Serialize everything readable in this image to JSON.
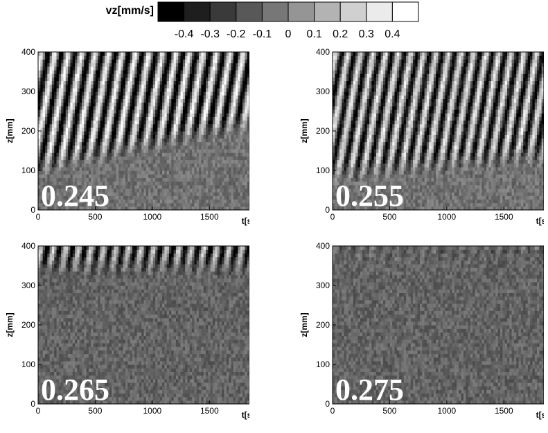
{
  "colorbar": {
    "title": "vz[mm/s]",
    "levels": [
      "-0.4",
      "-0.3",
      "-0.2",
      "-0.1",
      "0",
      "0.1",
      "0.2",
      "0.3",
      "0.4"
    ],
    "colors": [
      "#000000",
      "#1e1e1e",
      "#3a3a3a",
      "#585858",
      "#777777",
      "#959595",
      "#b3b3b3",
      "#d0d0d0",
      "#ebebeb",
      "#ffffff"
    ]
  },
  "chart_data": [
    {
      "type": "heatmap",
      "panel_label": "0.245",
      "xlabel": "t[s]",
      "ylabel": "z[mm]",
      "xlim": [
        0,
        1850
      ],
      "ylim": [
        0,
        400
      ],
      "xticks": [
        "0",
        "500",
        "1000",
        "1500"
      ],
      "yticks": [
        "0",
        "100",
        "200",
        "300",
        "400"
      ],
      "pattern": "strong diagonal traveling stripes, lower boundary rising from about z=100 to z=200",
      "stripe_period_s": 118,
      "stripe_amplitude": 0.4,
      "stripe_bottom_z": [
        80,
        190
      ],
      "background_value": -0.05
    },
    {
      "type": "heatmap",
      "panel_label": "0.255",
      "xlabel": "t[s]",
      "ylabel": "z[mm]",
      "xlim": [
        0,
        1850
      ],
      "ylim": [
        0,
        400
      ],
      "xticks": [
        "0",
        "500",
        "1000",
        "1500"
      ],
      "yticks": [
        "0",
        "100",
        "200",
        "300",
        "400"
      ],
      "pattern": "diagonal traveling stripes, slightly weaker near the bottom",
      "stripe_period_s": 110,
      "stripe_amplitude": 0.35,
      "stripe_bottom_z": [
        60,
        110
      ],
      "background_value": -0.05
    },
    {
      "type": "heatmap",
      "panel_label": "0.265",
      "xlabel": "t[s]",
      "ylabel": "z[mm]",
      "xlim": [
        0,
        1850
      ],
      "ylim": [
        0,
        400
      ],
      "xticks": [
        "0",
        "500",
        "1000",
        "1500"
      ],
      "yticks": [
        "0",
        "100",
        "200",
        "300",
        "400"
      ],
      "pattern": "stripes confined to top band (z about 320-400), noisy gray below",
      "stripe_period_s": 110,
      "stripe_amplitude": 0.35,
      "stripe_bottom_z": [
        320,
        320
      ],
      "background_value": -0.1
    },
    {
      "type": "heatmap",
      "panel_label": "0.275",
      "xlabel": "t[s]",
      "ylabel": "z[mm]",
      "xlim": [
        0,
        1850
      ],
      "ylim": [
        0,
        400
      ],
      "xticks": [
        "0",
        "500",
        "1000",
        "1500"
      ],
      "yticks": [
        "0",
        "100",
        "200",
        "300",
        "400"
      ],
      "pattern": "mostly uniform noisy gray, faint band near top",
      "stripe_period_s": 110,
      "stripe_amplitude": 0.08,
      "stripe_bottom_z": [
        340,
        340
      ],
      "background_value": -0.1
    }
  ]
}
